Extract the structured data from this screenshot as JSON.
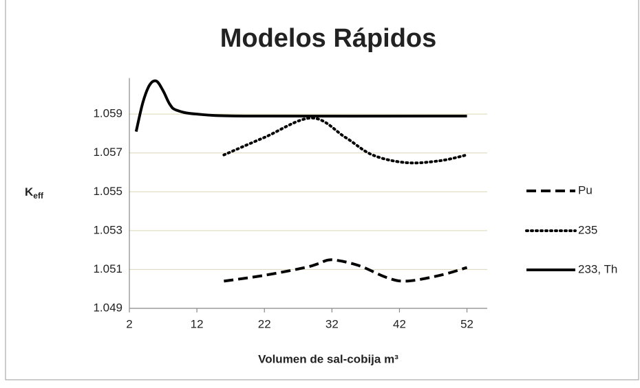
{
  "chart_data": {
    "type": "line",
    "title": "Modelos Rápidos",
    "x_label": "Volumen de sal-cobija m³",
    "y_label": {
      "main": "K",
      "sub": "eff"
    },
    "xlim": [
      2,
      55
    ],
    "xticks": [
      2,
      12,
      22,
      32,
      42,
      52
    ],
    "ylim": [
      1.049,
      1.061
    ],
    "yticks": [
      1.049,
      1.051,
      1.053,
      1.055,
      1.057,
      1.059
    ],
    "grid": true,
    "legend": "right",
    "series": [
      {
        "name": "Pu",
        "color": "#000000",
        "dash": "dashed",
        "x": [
          16,
          22,
          28,
          30,
          32,
          36,
          40,
          43,
          48,
          52
        ],
        "values": [
          1.0504,
          1.0507,
          1.0511,
          1.0513,
          1.0515,
          1.0512,
          1.0506,
          1.0504,
          1.0507,
          1.0511
        ]
      },
      {
        "name": "235",
        "color": "#000000",
        "dash": "dotted",
        "x": [
          16,
          22,
          29,
          34,
          38,
          43,
          48,
          52
        ],
        "values": [
          1.0569,
          1.0578,
          1.0588,
          1.0578,
          1.0569,
          1.0565,
          1.0566,
          1.0569
        ]
      },
      {
        "name": "233, Th",
        "color": "#000000",
        "dash": "solid",
        "x": [
          3,
          4,
          5,
          6,
          7,
          8,
          9,
          12,
          20,
          52
        ],
        "values": [
          1.0581,
          1.0596,
          1.0605,
          1.0607,
          1.0602,
          1.0595,
          1.0592,
          1.059,
          1.0589,
          1.0589
        ]
      }
    ]
  }
}
